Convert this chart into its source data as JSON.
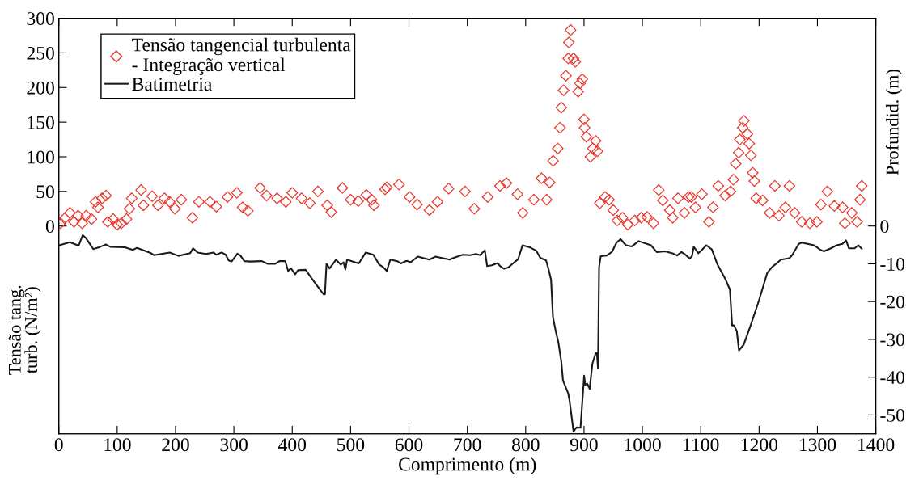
{
  "chart_data": {
    "type": "scatter",
    "xlabel": "Comprimento (m)",
    "ylabel": "Tensão tang.\nturb. (N/m²)",
    "y2label": "Profundid. (m)",
    "xlim": [
      0,
      1400
    ],
    "xticks": [
      0,
      100,
      200,
      300,
      400,
      500,
      600,
      700,
      800,
      900,
      1000,
      1100,
      1200,
      1300,
      1400
    ],
    "ylim": [
      -300,
      300
    ],
    "yticks": [
      0,
      50,
      100,
      150,
      200,
      250,
      300
    ],
    "y2lim": [
      -55,
      55
    ],
    "y2ticks": [
      -50,
      -40,
      -30,
      -20,
      -10,
      0
    ],
    "legend": "top left",
    "grid": false,
    "series": [
      {
        "name": "Tensão tangencial turbulenta\n- Integração vertical",
        "marker": "diamond",
        "color": "#e8382e",
        "axis": "y",
        "x": [
          3,
          10,
          19,
          26,
          33,
          40,
          47,
          56,
          63,
          67,
          74,
          81,
          84,
          93,
          100,
          107,
          116,
          121,
          125,
          141,
          145,
          160,
          170,
          181,
          190,
          199,
          210,
          229,
          240,
          259,
          270,
          289,
          305,
          315,
          324,
          345,
          356,
          374,
          389,
          400,
          416,
          430,
          444,
          460,
          467,
          486,
          500,
          513,
          527,
          536,
          540,
          559,
          562,
          583,
          601,
          614,
          635,
          649,
          668,
          696,
          712,
          735,
          756,
          767,
          786,
          795,
          814,
          827,
          836,
          841,
          847,
          855,
          859,
          861,
          865,
          869,
          873,
          874,
          877,
          882,
          885,
          890,
          893,
          897,
          900,
          901,
          904,
          911,
          915,
          920,
          923,
          927,
          936,
          943,
          950,
          957,
          966,
          975,
          987,
          998,
          1008,
          1019,
          1028,
          1035,
          1047,
          1052,
          1061,
          1072,
          1079,
          1084,
          1091,
          1102,
          1114,
          1121,
          1130,
          1142,
          1151,
          1156,
          1160,
          1165,
          1167,
          1172,
          1174,
          1180,
          1183,
          1186,
          1189,
          1192,
          1195,
          1206,
          1218,
          1227,
          1234,
          1245,
          1252,
          1261,
          1273,
          1287,
          1299,
          1306,
          1317,
          1329,
          1343,
          1347,
          1359,
          1368,
          1373,
          1376
        ],
        "values": [
          4,
          11,
          19,
          6,
          15,
          4,
          15,
          10,
          35,
          27,
          40,
          44,
          6,
          10,
          2,
          4,
          10,
          25,
          40,
          52,
          30,
          43,
          30,
          40,
          35,
          25,
          38,
          12,
          35,
          35,
          28,
          42,
          48,
          27,
          22,
          55,
          44,
          40,
          35,
          48,
          40,
          33,
          50,
          30,
          20,
          55,
          38,
          36,
          45,
          38,
          30,
          53,
          56,
          60,
          42,
          31,
          23,
          35,
          54,
          50,
          25,
          42,
          58,
          62,
          46,
          19,
          38,
          69,
          38,
          63,
          94,
          112,
          142,
          171,
          196,
          217,
          242,
          265,
          283,
          242,
          237,
          194,
          206,
          212,
          154,
          142,
          129,
          100,
          112,
          123,
          108,
          33,
          42,
          38,
          23,
          8,
          12,
          2,
          8,
          12,
          13,
          4,
          52,
          37,
          23,
          12,
          40,
          19,
          42,
          42,
          27,
          46,
          6,
          27,
          58,
          44,
          50,
          67,
          90,
          106,
          125,
          142,
          152,
          133,
          119,
          102,
          77,
          65,
          40,
          37,
          19,
          58,
          15,
          27,
          58,
          19,
          6,
          4,
          6,
          31,
          50,
          29,
          27,
          4,
          19,
          6,
          38,
          58
        ]
      },
      {
        "name": "Batimetria",
        "type": "line",
        "color": "#1a1a1a",
        "axis": "y2",
        "line_style": "solid",
        "x": [
          1,
          19,
          34,
          41,
          46,
          59,
          71,
          81,
          88,
          112,
          127,
          134,
          158,
          163,
          190,
          205,
          225,
          230,
          238,
          252,
          265,
          270,
          279,
          286,
          291,
          296,
          306,
          311,
          318,
          328,
          348,
          358,
          371,
          378,
          388,
          393,
          398,
          405,
          410,
          423,
          433,
          444,
          454,
          456,
          458.7,
          464,
          475,
          483,
          488,
          491,
          494,
          502,
          514,
          526,
          539,
          549,
          556,
          562,
          568,
          580,
          586,
          596,
          603,
          615,
          635,
          645,
          670,
          675,
          692,
          705,
          715,
          722,
          730,
          734,
          742,
          752,
          756,
          763,
          770,
          778,
          787,
          794.6,
          808,
          818,
          825,
          835,
          839,
          843.5,
          846.8,
          851.5,
          856,
          861,
          864,
          872.7,
          875,
          878.4,
          882,
          887,
          894,
          897.3,
          900.2,
          902,
          905.5,
          909.6,
          914.3,
          920,
          922,
          923.9,
          925.8,
          928.6,
          939,
          948,
          955.7,
          962.7,
          972,
          982,
          993.5,
          1014.7,
          1024.5,
          1039,
          1053,
          1059.6,
          1067,
          1073.7,
          1081,
          1085,
          1088,
          1096,
          1101,
          1109.6,
          1119,
          1128.7,
          1142.7,
          1150,
          1153.8,
          1157,
          1161.8,
          1165.5,
          1173.7,
          1185.5,
          1199.8,
          1214,
          1222,
          1237.6,
          1251.8,
          1256.6,
          1268,
          1273,
          1294.4,
          1304,
          1311,
          1323,
          1333,
          1343,
          1349,
          1354,
          1363.7,
          1370,
          1376
        ],
        "values": [
          -5.1,
          -4.3,
          -5.2,
          -2.4,
          -3.1,
          -6.1,
          -5.5,
          -4.9,
          -5.5,
          -5.6,
          -6.3,
          -5.8,
          -7.2,
          -7.7,
          -7.0,
          -7.9,
          -7.2,
          -5.9,
          -7.0,
          -7.4,
          -7.0,
          -7.6,
          -7.0,
          -7.6,
          -9.1,
          -9.4,
          -7.3,
          -7.8,
          -9.3,
          -9.4,
          -9.3,
          -10.0,
          -10.0,
          -9.3,
          -9.3,
          -11.9,
          -11.2,
          -12.8,
          -11.7,
          -11.6,
          -13.8,
          -16.1,
          -18.1,
          -18.1,
          -10.0,
          -11.2,
          -8.9,
          -10.2,
          -9.6,
          -11.5,
          -8.9,
          -9.3,
          -9.9,
          -7.0,
          -7.6,
          -10.2,
          -10.9,
          -11.9,
          -8.9,
          -9.3,
          -9.9,
          -9.2,
          -9.6,
          -8.1,
          -8.9,
          -8.1,
          -8.9,
          -8.5,
          -7.6,
          -7.7,
          -7.4,
          -7.7,
          -6.4,
          -10.6,
          -10.4,
          -9.8,
          -10.6,
          -11.3,
          -11.0,
          -9.9,
          -8.8,
          -5.1,
          -5.7,
          -6.5,
          -8.4,
          -9.1,
          -11.3,
          -14.2,
          -24.1,
          -27.8,
          -30.7,
          -35.8,
          -40.9,
          -44.2,
          -46.0,
          -50.0,
          -54.4,
          -53.3,
          -53.4,
          -46.0,
          -39.6,
          -42.0,
          -41.7,
          -43.1,
          -36.5,
          -33.6,
          -33.6,
          -37.6,
          -10.9,
          -8.0,
          -7.8,
          -6.8,
          -4.4,
          -3.5,
          -5.1,
          -5.4,
          -4.0,
          -5.1,
          -6.9,
          -6.7,
          -7.3,
          -7.8,
          -6.9,
          -7.6,
          -8.6,
          -8.0,
          -5.5,
          -7.2,
          -6.5,
          -5.1,
          -6.2,
          -10.2,
          -14.2,
          -16.8,
          -26.3,
          -26.3,
          -27.8,
          -32.9,
          -31.4,
          -26.3,
          -19.7,
          -12.4,
          -10.9,
          -8.9,
          -8.5,
          -7.7,
          -4.7,
          -4.4,
          -5.1,
          -6.2,
          -6.7,
          -5.9,
          -5.1,
          -4.7,
          -3.8,
          -5.9,
          -5.9,
          -5.1,
          -6.0
        ]
      }
    ]
  }
}
